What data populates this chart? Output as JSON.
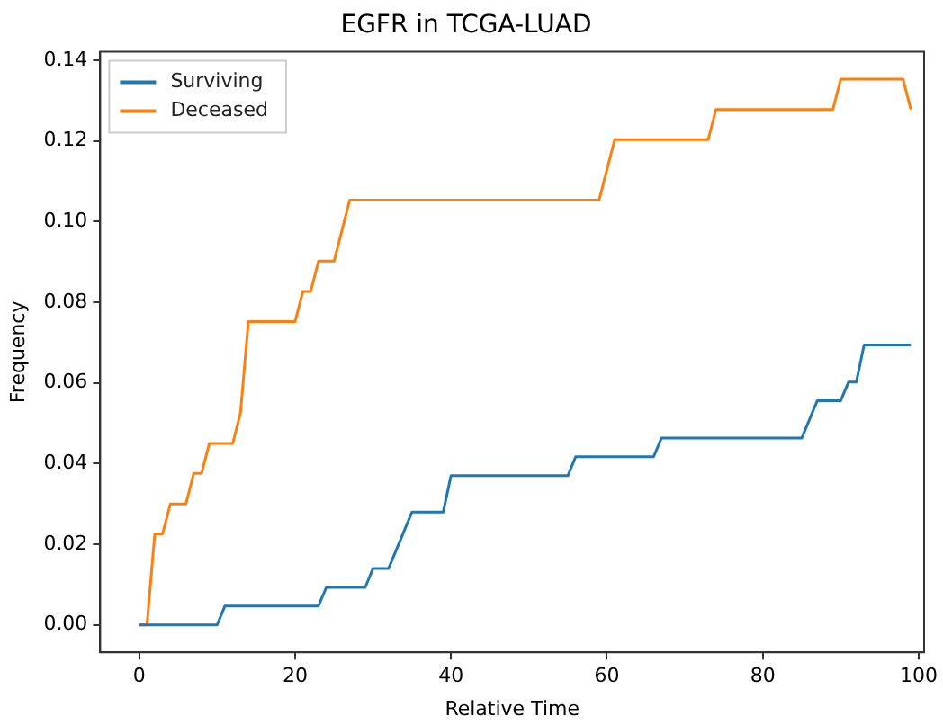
{
  "chart_data": {
    "type": "line",
    "title": "EGFR in TCGA-LUAD",
    "xlabel": "Relative Time",
    "ylabel": "Frequency",
    "xlim": [
      -5,
      100.7
    ],
    "xticks": [
      0,
      20,
      40,
      60,
      80,
      100
    ],
    "ylim": [
      -0.0068,
      0.1421
    ],
    "yticks": [
      {
        "value": 0,
        "label": "0.00"
      },
      {
        "value": 0.02,
        "label": "0.02"
      },
      {
        "value": 0.04,
        "label": "0.04"
      },
      {
        "value": 0.06,
        "label": "0.06"
      },
      {
        "value": 0.08,
        "label": "0.08"
      },
      {
        "value": 0.1,
        "label": "0.10"
      },
      {
        "value": 0.12,
        "label": "0.12"
      },
      {
        "value": 0.14,
        "label": "0.14"
      }
    ],
    "legend": "top left",
    "grid": false,
    "marker": "none",
    "line_style": "solid",
    "series": [
      {
        "name": "Surviving",
        "color": "#1f77b4",
        "x": [
          0,
          10,
          11,
          23,
          24,
          29,
          30,
          32,
          35,
          39,
          40,
          55,
          56,
          66,
          67,
          85,
          87,
          90,
          91,
          92,
          93,
          99
        ],
        "values": [
          0,
          0,
          0.0047,
          0.0047,
          0.0093,
          0.0093,
          0.014,
          0.014,
          0.028,
          0.028,
          0.037,
          0.037,
          0.0417,
          0.0417,
          0.0463,
          0.0463,
          0.0556,
          0.0556,
          0.0602,
          0.0602,
          0.0694,
          0.0694
        ]
      },
      {
        "name": "Deceased",
        "color": "#ff7f0e",
        "x": [
          0,
          1,
          2,
          3,
          4,
          6,
          7,
          8,
          9,
          12,
          13,
          14,
          20,
          21,
          22,
          23,
          25,
          27,
          59,
          61,
          73,
          74,
          89,
          90,
          98,
          99
        ],
        "values": [
          0,
          0,
          0.0226,
          0.0226,
          0.03,
          0.03,
          0.0376,
          0.0376,
          0.045,
          0.045,
          0.0526,
          0.0752,
          0.0752,
          0.0827,
          0.0827,
          0.0902,
          0.0902,
          0.1053,
          0.1053,
          0.1203,
          0.1203,
          0.1278,
          0.1278,
          0.1353,
          0.1353,
          0.1278
        ]
      }
    ]
  }
}
